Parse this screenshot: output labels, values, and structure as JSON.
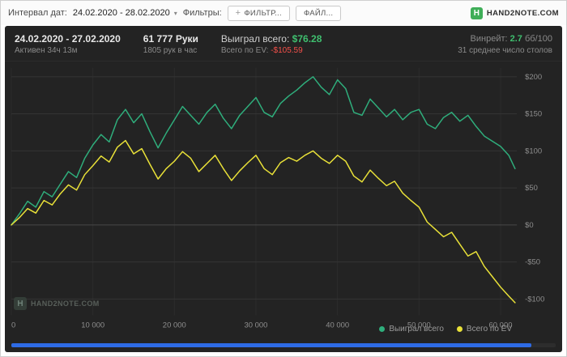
{
  "topbar": {
    "interval_label": "Интервал дат:",
    "date_range": "24.02.2020 - 28.02.2020",
    "filters_label": "Фильтры:",
    "add_filter_plus": "+",
    "add_filter_label": "ФИЛЬТР...",
    "file_label": "ФАЙЛ...",
    "brand_icon": "H",
    "brand": "HAND2NOTE.COM"
  },
  "stats": {
    "date_range": "24.02.2020 - 27.02.2020",
    "active_time": "Активен 34ч 13м",
    "hands": "61 777 Руки",
    "hands_per_hour": "1805 рук в час",
    "won_label": "Выиграл всего:",
    "won_value": "$76.28",
    "ev_label": "Всего по EV:",
    "ev_value": "-$105.59",
    "winrate_label": "Винрейт:",
    "winrate_value": "2.7",
    "winrate_unit": "бб/100",
    "avg_tables": "31 среднее число столов"
  },
  "watermark": {
    "icon": "H",
    "text": "HAND2NOTE.COM"
  },
  "colors": {
    "green": "#3fbf6f",
    "red": "#f4504a",
    "line_green": "#2fae7c",
    "line_yellow": "#e9e138",
    "scrollbar_blue": "#2e6be5"
  },
  "chart_data": {
    "type": "line",
    "title": "",
    "xlabel": "",
    "ylabel": "",
    "xlim": [
      0,
      62000
    ],
    "ylim": [
      -122,
      212
    ],
    "grid": true,
    "legend_position": "bottom-right",
    "x_ticks": [
      0,
      10000,
      20000,
      30000,
      40000,
      50000,
      60000
    ],
    "x_tick_labels": [
      "0",
      "10 000",
      "20 000",
      "30 000",
      "40 000",
      "50 000",
      "60 000"
    ],
    "y_ticks": [
      -100,
      -50,
      0,
      50,
      100,
      150,
      200
    ],
    "y_tick_labels": [
      "-$100",
      "-$50",
      "$0",
      "$50",
      "$100",
      "$150",
      "$200"
    ],
    "x": [
      0,
      1000,
      2000,
      3000,
      4000,
      5000,
      6000,
      7000,
      8000,
      9000,
      10000,
      11000,
      12000,
      13000,
      14000,
      15000,
      16000,
      17000,
      18000,
      19000,
      20000,
      21000,
      22000,
      23000,
      24000,
      25000,
      26000,
      27000,
      28000,
      29000,
      30000,
      31000,
      32000,
      33000,
      34000,
      35000,
      36000,
      37000,
      38000,
      39000,
      40000,
      41000,
      42000,
      43000,
      44000,
      45000,
      46000,
      47000,
      48000,
      49000,
      50000,
      51000,
      52000,
      53000,
      54000,
      55000,
      56000,
      57000,
      58000,
      59000,
      60000,
      61000,
      61777
    ],
    "series": [
      {
        "name": "Выиграл всего",
        "color": "#2fae7c",
        "values": [
          0,
          15,
          32,
          24,
          45,
          38,
          55,
          72,
          64,
          90,
          108,
          122,
          112,
          142,
          156,
          138,
          150,
          126,
          104,
          124,
          142,
          160,
          148,
          136,
          152,
          163,
          144,
          130,
          148,
          160,
          172,
          152,
          146,
          164,
          174,
          182,
          192,
          200,
          186,
          176,
          196,
          184,
          152,
          148,
          170,
          158,
          146,
          156,
          142,
          152,
          156,
          136,
          130,
          145,
          152,
          140,
          148,
          133,
          120,
          113,
          106,
          94,
          76
        ]
      },
      {
        "name": "Всего по EV",
        "color": "#e9e138",
        "values": [
          0,
          10,
          22,
          16,
          33,
          27,
          42,
          54,
          47,
          68,
          80,
          93,
          85,
          105,
          114,
          96,
          103,
          82,
          62,
          76,
          86,
          99,
          90,
          72,
          83,
          94,
          76,
          60,
          73,
          84,
          94,
          76,
          68,
          84,
          91,
          86,
          94,
          100,
          90,
          83,
          94,
          86,
          66,
          58,
          74,
          63,
          53,
          59,
          43,
          33,
          24,
          4,
          -6,
          -16,
          -10,
          -26,
          -42,
          -36,
          -56,
          -70,
          -84,
          -96,
          -105
        ]
      }
    ]
  }
}
